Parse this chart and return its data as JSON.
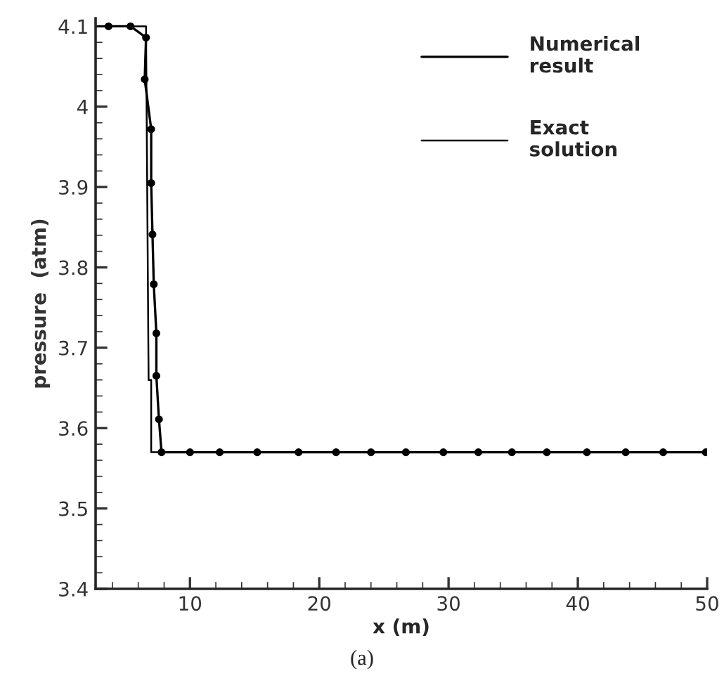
{
  "chart_data": {
    "type": "line",
    "xlabel": "x (m)",
    "ylabel": "pressure  (atm)",
    "annotations": [
      "(a)"
    ],
    "series": [
      {
        "name": "Numerical\nresult",
        "color": "#000000",
        "marker": "circle",
        "x": [
          3.7,
          5.4,
          6.6,
          6.5,
          7.0,
          7.0,
          7.1,
          7.2,
          7.4,
          7.4,
          7.6,
          7.8,
          10,
          12.3,
          15.2,
          18.4,
          21.3,
          24.0,
          26.7,
          29.6,
          32.3,
          34.9,
          37.6,
          40.7,
          43.7,
          46.6,
          49.9
        ],
        "values": [
          4.1,
          4.1,
          4.086,
          4.034,
          3.972,
          3.905,
          3.841,
          3.779,
          3.718,
          3.665,
          3.611,
          3.57,
          3.57,
          3.57,
          3.57,
          3.57,
          3.57,
          3.57,
          3.57,
          3.57,
          3.57,
          3.57,
          3.57,
          3.57,
          3.57,
          3.57,
          3.57
        ]
      },
      {
        "name": "Exact\nsolution",
        "color": "#000000",
        "x": [
          2.7,
          6.6,
          6.8,
          7.0,
          7.0,
          50
        ],
        "values": [
          4.1,
          4.1,
          3.66,
          3.66,
          3.57,
          3.57
        ]
      }
    ],
    "xlim": [
      2.7,
      50
    ],
    "xticks": [
      10,
      20,
      30,
      40,
      50
    ],
    "ylim": [
      3.4,
      4.11
    ],
    "yticks": [
      3.4,
      3.5,
      3.6,
      3.7,
      3.8,
      3.9,
      {
        "value": 4.0,
        "label": "4"
      },
      4.1
    ],
    "grid": false,
    "legend": "top right",
    "line_style": "solid"
  }
}
